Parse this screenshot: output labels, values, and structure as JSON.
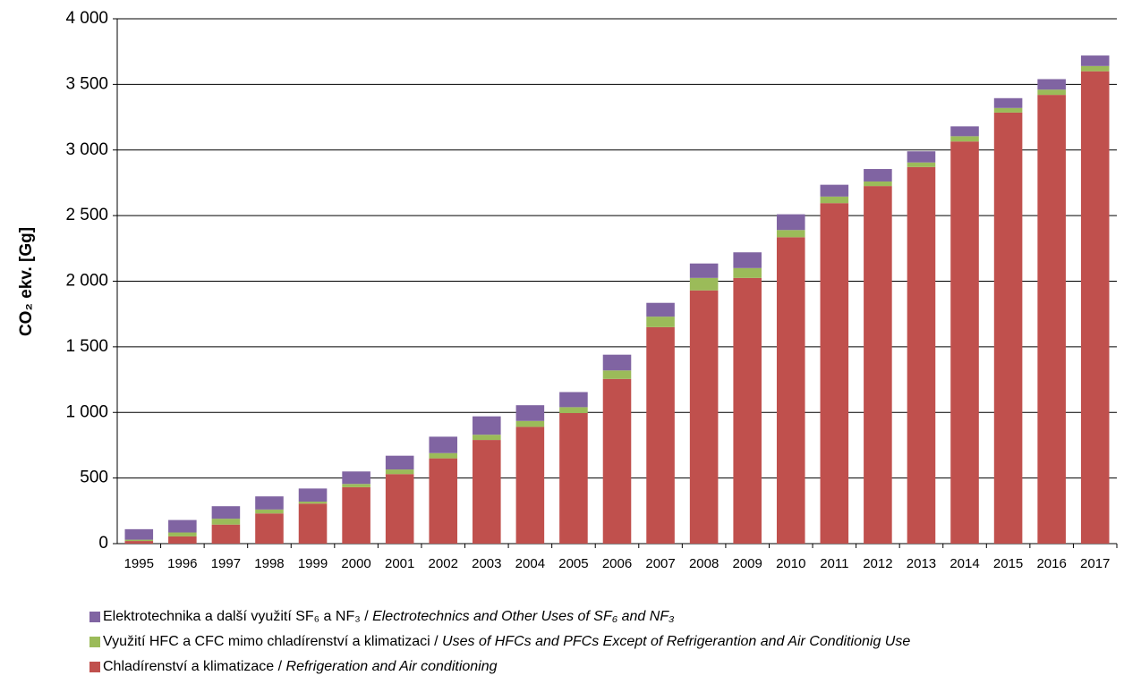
{
  "chart_data": {
    "type": "stacked_bar",
    "y_label": "CO₂ ekv. [Gg]",
    "categories": [
      "1995",
      "1996",
      "1997",
      "1998",
      "1999",
      "2000",
      "2001",
      "2002",
      "2003",
      "2004",
      "2005",
      "2006",
      "2007",
      "2008",
      "2009",
      "2010",
      "2011",
      "2012",
      "2013",
      "2014",
      "2015",
      "2016",
      "2017"
    ],
    "series": [
      {
        "name": "Chladírenství a klimatizace / Refrigeration and Air conditioning",
        "color": "#c0504d",
        "values": [
          20,
          55,
          145,
          230,
          305,
          430,
          530,
          650,
          790,
          890,
          995,
          1255,
          1650,
          1930,
          2025,
          2335,
          2595,
          2725,
          2870,
          3065,
          3285,
          3420,
          3600
        ]
      },
      {
        "name": "Využití HFC a CFC mimo chladírenství a klimatizaci /  Uses of HFCs and PFCs Except of Refrigerantion and Air Conditionig Use",
        "color": "#9bbb59",
        "values": [
          10,
          30,
          45,
          30,
          15,
          25,
          35,
          40,
          40,
          45,
          45,
          65,
          80,
          95,
          75,
          55,
          50,
          35,
          35,
          40,
          35,
          40,
          40
        ]
      },
      {
        "name": "Elektrotechnika a další využití SF₆ a NF₃ / Electrotechnics and Other Uses of SF₆ and NF₃",
        "color": "#8064a2",
        "values": [
          80,
          95,
          95,
          100,
          100,
          95,
          105,
          125,
          140,
          120,
          115,
          120,
          105,
          110,
          120,
          120,
          90,
          95,
          85,
          75,
          75,
          80,
          80
        ]
      }
    ],
    "ylim": [
      0,
      4000
    ],
    "yticks": [
      0,
      500,
      {
        "value": 1000,
        "label": "1 000"
      },
      {
        "value": 1500,
        "label": "1 500"
      },
      {
        "value": 2000,
        "label": "2 000"
      },
      {
        "value": 2500,
        "label": "2 500"
      },
      {
        "value": 3000,
        "label": "3 000"
      },
      {
        "value": 3500,
        "label": "3 500"
      },
      {
        "value": 4000,
        "label": "4 000"
      }
    ],
    "grid": true
  }
}
